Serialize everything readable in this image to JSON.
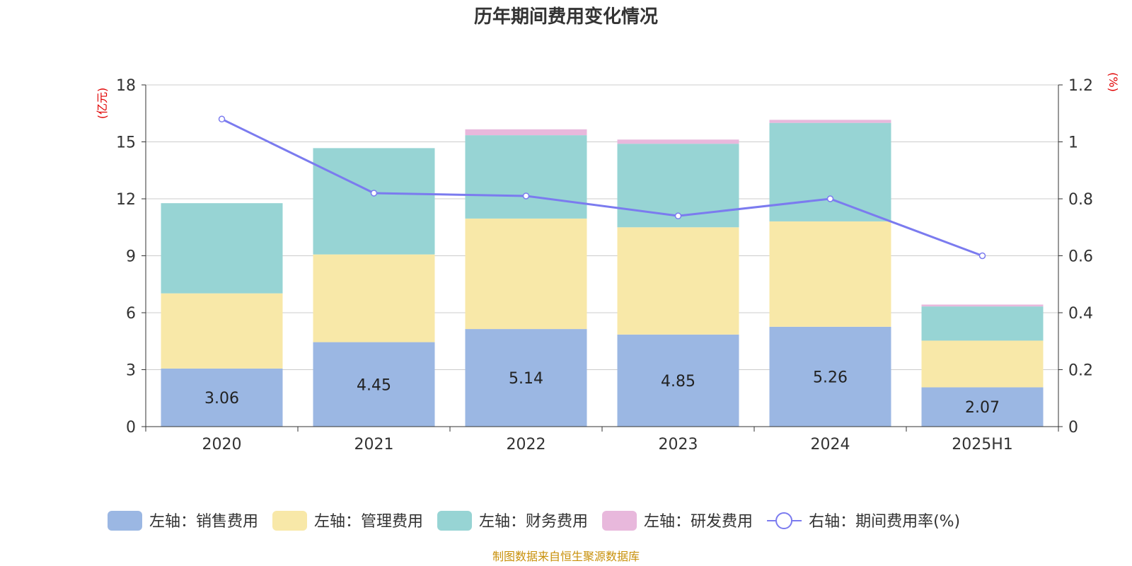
{
  "chart_data": {
    "type": "bar",
    "stacked": true,
    "title": "历年期间费用变化情况",
    "categories": [
      "2020",
      "2021",
      "2022",
      "2023",
      "2024",
      "2025H1"
    ],
    "left_axis": {
      "unit": "(亿元)",
      "ticks": [
        "0",
        "3",
        "6",
        "9",
        "12",
        "15",
        "18"
      ],
      "range": [
        0,
        18
      ]
    },
    "right_axis": {
      "unit": "(%)",
      "ticks": [
        "0",
        "0.2",
        "0.4",
        "0.6",
        "0.8",
        "1",
        "1.2"
      ],
      "range": [
        0,
        1.2
      ]
    },
    "grid": true,
    "legend_position": "bottom",
    "series": [
      {
        "name": "左轴：销售费用",
        "axis": "left",
        "color": "#9bb7e3",
        "values": [
          3.06,
          4.45,
          5.14,
          4.85,
          5.26,
          2.07
        ],
        "labels": [
          "3.06",
          "4.45",
          "5.14",
          "4.85",
          "5.26",
          "2.07"
        ]
      },
      {
        "name": "左轴：管理费用",
        "axis": "left",
        "color": "#f8e8a8",
        "values": [
          3.96,
          4.62,
          5.82,
          5.65,
          5.55,
          2.46
        ]
      },
      {
        "name": "左轴：财务费用",
        "axis": "left",
        "color": "#97d4d4",
        "values": [
          4.75,
          5.6,
          4.39,
          4.4,
          5.19,
          1.8
        ]
      },
      {
        "name": "左轴：研发费用",
        "axis": "left",
        "color": "#e8b8dc",
        "values": [
          0.0,
          0.0,
          0.31,
          0.22,
          0.16,
          0.1
        ]
      }
    ],
    "line": {
      "name": "右轴：期间费用率(%)",
      "axis": "right",
      "color": "#7b7bef",
      "values": [
        1.08,
        0.82,
        0.81,
        0.74,
        0.8,
        0.6
      ]
    }
  },
  "source": "制图数据来自恒生聚源数据库"
}
